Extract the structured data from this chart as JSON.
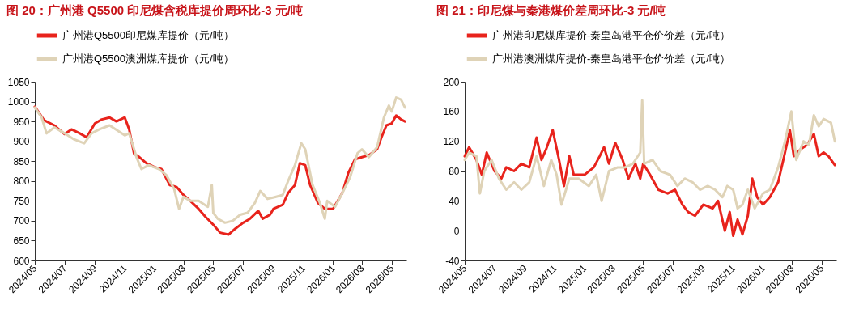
{
  "chart_data": [
    {
      "type": "line",
      "title": "图 20：广州港 Q5500 印尼煤含税库提价周环比-3 元/吨",
      "legend": "top",
      "xlim": [
        "2024-05-01",
        "2026-05-31"
      ],
      "xticks": [
        {
          "value": "2024-05",
          "label": "2024/05"
        },
        {
          "value": "2024-07",
          "label": "2024/07"
        },
        {
          "value": "2024-09",
          "label": "2024/09"
        },
        {
          "value": "2024-11",
          "label": "2024/11"
        },
        {
          "value": "2025-01",
          "label": "2025/01"
        },
        {
          "value": "2025-03",
          "label": "2025/03"
        },
        {
          "value": "2025-05",
          "label": "2025/05"
        },
        {
          "value": "2025-07",
          "label": "2025/07"
        },
        {
          "value": "2025-09",
          "label": "2025/09"
        },
        {
          "value": "2025-11",
          "label": "2025/11"
        },
        {
          "value": "2026-01",
          "label": "2026/01"
        },
        {
          "value": "2026-03",
          "label": "2026/03"
        },
        {
          "value": "2026-05",
          "label": "2026/05"
        }
      ],
      "ylim": [
        600,
        1050
      ],
      "yticks": [
        600,
        650,
        700,
        750,
        800,
        850,
        900,
        950,
        1000,
        1050
      ],
      "series": [
        {
          "name": "广州港Q5500印尼煤库提价（元/吨）",
          "color": "#e8231c",
          "x": [
            "2024-05-01",
            "2024-05-20",
            "2024-06-10",
            "2024-07-01",
            "2024-07-15",
            "2024-08-01",
            "2024-08-15",
            "2024-09-01",
            "2024-09-15",
            "2024-10-01",
            "2024-10-15",
            "2024-11-01",
            "2024-11-10",
            "2024-11-20",
            "2024-12-01",
            "2024-12-15",
            "2025-01-01",
            "2025-01-15",
            "2025-02-01",
            "2025-02-15",
            "2025-03-01",
            "2025-03-15",
            "2025-04-01",
            "2025-04-15",
            "2025-05-01",
            "2025-05-15",
            "2025-06-01",
            "2025-06-15",
            "2025-07-01",
            "2025-07-15",
            "2025-08-01",
            "2025-08-10",
            "2025-08-25",
            "2025-09-01",
            "2025-09-20",
            "2025-10-01",
            "2025-10-15",
            "2025-10-25",
            "2025-11-05",
            "2025-11-15",
            "2025-12-01",
            "2025-12-15",
            "2026-01-01",
            "2026-01-20",
            "2026-02-01",
            "2026-02-15",
            "2026-03-01",
            "2026-03-15",
            "2026-04-01",
            "2026-04-10",
            "2026-04-20",
            "2026-05-01",
            "2026-05-10",
            "2026-05-20",
            "2026-05-28"
          ],
          "values": [
            987,
            953,
            940,
            918,
            930,
            920,
            910,
            945,
            955,
            960,
            950,
            960,
            930,
            869,
            860,
            845,
            835,
            830,
            790,
            785,
            765,
            750,
            730,
            710,
            690,
            670,
            665,
            680,
            695,
            705,
            725,
            705,
            715,
            730,
            740,
            770,
            790,
            845,
            840,
            790,
            745,
            730,
            730,
            770,
            820,
            855,
            860,
            865,
            880,
            910,
            940,
            945,
            965,
            955,
            950
          ]
        },
        {
          "name": "广州港Q5500澳洲煤库提价（元/吨）",
          "color": "#dfd3b7",
          "x": [
            "2024-05-01",
            "2024-05-15",
            "2024-05-25",
            "2024-06-10",
            "2024-07-01",
            "2024-07-20",
            "2024-08-10",
            "2024-08-25",
            "2024-09-10",
            "2024-10-01",
            "2024-10-20",
            "2024-11-01",
            "2024-11-10",
            "2024-11-25",
            "2024-12-05",
            "2024-12-20",
            "2025-01-10",
            "2025-01-25",
            "2025-02-10",
            "2025-02-20",
            "2025-03-01",
            "2025-03-15",
            "2025-04-01",
            "2025-04-20",
            "2025-04-28",
            "2025-05-01",
            "2025-05-10",
            "2025-05-25",
            "2025-06-10",
            "2025-06-25",
            "2025-07-10",
            "2025-07-25",
            "2025-08-05",
            "2025-08-20",
            "2025-09-05",
            "2025-09-20",
            "2025-10-01",
            "2025-10-15",
            "2025-10-28",
            "2025-11-05",
            "2025-11-20",
            "2025-12-05",
            "2025-12-15",
            "2025-12-20",
            "2026-01-05",
            "2026-01-20",
            "2026-02-05",
            "2026-02-20",
            "2026-03-01",
            "2026-03-15",
            "2026-04-01",
            "2026-04-15",
            "2026-04-25",
            "2026-05-01",
            "2026-05-10",
            "2026-05-20",
            "2026-05-28"
          ],
          "values": [
            985,
            960,
            920,
            935,
            920,
            905,
            895,
            920,
            930,
            940,
            925,
            915,
            920,
            860,
            830,
            840,
            830,
            815,
            780,
            730,
            760,
            750,
            750,
            735,
            790,
            720,
            705,
            695,
            700,
            715,
            720,
            745,
            775,
            755,
            760,
            765,
            800,
            840,
            895,
            880,
            790,
            745,
            705,
            750,
            735,
            770,
            810,
            870,
            880,
            860,
            885,
            960,
            990,
            975,
            1010,
            1005,
            985
          ]
        }
      ]
    },
    {
      "type": "line",
      "title": "图 21：印尼煤与秦港煤价差周环比-3 元/吨",
      "legend": "top",
      "xlim": [
        "2024-05-01",
        "2026-05-31"
      ],
      "xticks": [
        {
          "value": "2024-05",
          "label": "2024/05"
        },
        {
          "value": "2024-07",
          "label": "2024/07"
        },
        {
          "value": "2024-09",
          "label": "2024/09"
        },
        {
          "value": "2024-11",
          "label": "2024/11"
        },
        {
          "value": "2025-01",
          "label": "2025/01"
        },
        {
          "value": "2025-03",
          "label": "2025/03"
        },
        {
          "value": "2025-05",
          "label": "2025/05"
        },
        {
          "value": "2025-07",
          "label": "2025/07"
        },
        {
          "value": "2025-09",
          "label": "2025/09"
        },
        {
          "value": "2025-11",
          "label": "2025/11"
        },
        {
          "value": "2026-01",
          "label": "2026/01"
        },
        {
          "value": "2026-03",
          "label": "2026/03"
        },
        {
          "value": "2026-05",
          "label": "2026/05"
        }
      ],
      "ylim": [
        -40,
        200
      ],
      "yticks": [
        -40,
        0,
        40,
        80,
        120,
        160,
        200
      ],
      "series": [
        {
          "name": "广州港印尼煤库提价-秦皇岛港平仓价价差（元/吨）",
          "color": "#e8231c",
          "x": [
            "2024-05-01",
            "2024-05-10",
            "2024-05-25",
            "2024-06-05",
            "2024-06-15",
            "2024-07-01",
            "2024-07-15",
            "2024-07-25",
            "2024-08-10",
            "2024-08-25",
            "2024-09-10",
            "2024-09-25",
            "2024-10-05",
            "2024-10-15",
            "2024-10-28",
            "2024-11-10",
            "2024-11-20",
            "2024-12-01",
            "2024-12-10",
            "2025-01-01",
            "2025-01-20",
            "2025-02-01",
            "2025-02-10",
            "2025-02-20",
            "2025-03-05",
            "2025-03-20",
            "2025-04-01",
            "2025-04-15",
            "2025-04-25",
            "2025-05-01",
            "2025-05-15",
            "2025-06-01",
            "2025-06-20",
            "2025-07-05",
            "2025-07-20",
            "2025-08-01",
            "2025-08-15",
            "2025-09-01",
            "2025-09-20",
            "2025-10-01",
            "2025-10-15",
            "2025-10-25",
            "2025-11-01",
            "2025-11-10",
            "2025-11-20",
            "2025-12-01",
            "2025-12-10",
            "2025-12-20",
            "2026-01-01",
            "2026-01-15",
            "2026-02-01",
            "2026-02-15",
            "2026-02-25",
            "2026-03-05",
            "2026-03-20",
            "2026-04-01",
            "2026-04-15",
            "2026-04-25",
            "2026-05-05",
            "2026-05-15",
            "2026-05-28"
          ],
          "values": [
            100,
            112,
            95,
            75,
            105,
            80,
            70,
            85,
            80,
            90,
            85,
            125,
            95,
            110,
            135,
            95,
            60,
            100,
            75,
            75,
            85,
            100,
            112,
            90,
            118,
            95,
            70,
            90,
            70,
            90,
            75,
            55,
            50,
            55,
            35,
            25,
            20,
            35,
            30,
            40,
            0,
            25,
            -7,
            15,
            -5,
            20,
            70,
            45,
            35,
            45,
            65,
            105,
            135,
            100,
            110,
            115,
            130,
            100,
            105,
            100,
            88
          ]
        },
        {
          "name": "广州港澳洲煤库提价-秦皇岛港平仓价价差（元/吨）",
          "color": "#dfd3b7",
          "x": [
            "2024-05-01",
            "2024-05-10",
            "2024-05-25",
            "2024-06-01",
            "2024-06-10",
            "2024-06-25",
            "2024-07-10",
            "2024-07-25",
            "2024-08-10",
            "2024-08-25",
            "2024-09-10",
            "2024-09-25",
            "2024-10-10",
            "2024-10-25",
            "2024-11-05",
            "2024-11-15",
            "2024-12-01",
            "2024-12-20",
            "2025-01-10",
            "2025-01-25",
            "2025-02-05",
            "2025-02-20",
            "2025-03-10",
            "2025-03-25",
            "2025-04-10",
            "2025-04-25",
            "2025-04-29",
            "2025-05-03",
            "2025-05-20",
            "2025-06-05",
            "2025-06-25",
            "2025-07-10",
            "2025-07-25",
            "2025-08-10",
            "2025-08-25",
            "2025-09-10",
            "2025-09-25",
            "2025-10-10",
            "2025-10-20",
            "2025-11-01",
            "2025-11-10",
            "2025-11-20",
            "2025-12-01",
            "2025-12-15",
            "2026-01-01",
            "2026-01-15",
            "2026-02-01",
            "2026-02-15",
            "2026-02-28",
            "2026-03-10",
            "2026-03-25",
            "2026-04-05",
            "2026-04-15",
            "2026-04-25",
            "2026-05-05",
            "2026-05-20",
            "2026-05-28"
          ],
          "values": [
            95,
            105,
            100,
            50,
            80,
            95,
            70,
            55,
            65,
            55,
            65,
            100,
            60,
            95,
            75,
            35,
            70,
            70,
            60,
            75,
            40,
            80,
            85,
            85,
            90,
            105,
            175,
            90,
            95,
            80,
            75,
            60,
            70,
            65,
            55,
            60,
            55,
            45,
            60,
            55,
            30,
            35,
            55,
            30,
            50,
            55,
            85,
            120,
            160,
            95,
            120,
            115,
            155,
            140,
            150,
            145,
            120
          ]
        }
      ]
    }
  ]
}
